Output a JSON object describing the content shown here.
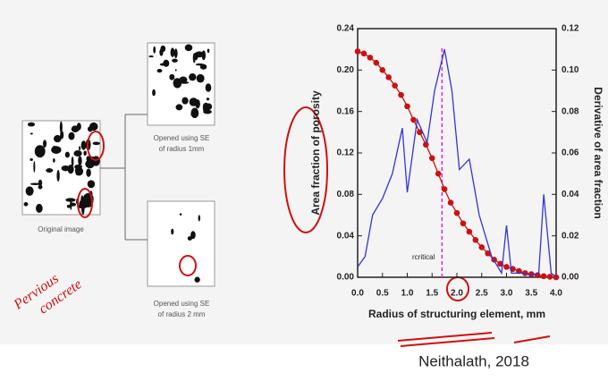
{
  "images": {
    "original": "Original image",
    "opened_1": [
      "Opened using SE",
      "of radius 1mm"
    ],
    "opened_2": [
      "Opened using SE",
      "of radius 2 mm"
    ]
  },
  "handwriting": [
    "Pervious",
    "concrete"
  ],
  "citation": "Neithalath, 2018",
  "chart_data": {
    "type": "line",
    "xlabel": "Radius of structuring element, mm",
    "ylabel": "Area fraction of porosity",
    "y2label": "Derivative of area fraction",
    "xlim": [
      0,
      4
    ],
    "ylim": [
      0,
      0.24
    ],
    "y2lim": [
      0,
      0.12
    ],
    "xticks": [
      {
        "value": 0,
        "label": "0.0"
      },
      0.5,
      {
        "value": 1,
        "label": "1.0"
      },
      1.5,
      {
        "value": 2,
        "label": "2.0"
      },
      2.5,
      {
        "value": 3,
        "label": "3.0"
      },
      3.5,
      {
        "value": 4,
        "label": "4.0"
      }
    ],
    "yticks": [
      {
        "value": 0,
        "label": "0.00"
      },
      {
        "value": 0.04,
        "label": "0.04"
      },
      {
        "value": 0.08,
        "label": "0.08"
      },
      {
        "value": 0.12,
        "label": "0.12"
      },
      {
        "value": 0.16,
        "label": "0.16"
      },
      {
        "value": 0.2,
        "label": "0.20"
      },
      {
        "value": 0.24,
        "label": "0.24"
      }
    ],
    "y2ticks": [
      {
        "value": 0,
        "label": "0.00"
      },
      {
        "value": 0.02,
        "label": "0.02"
      },
      {
        "value": 0.04,
        "label": "0.04"
      },
      {
        "value": 0.06,
        "label": "0.06"
      },
      {
        "value": 0.08,
        "label": "0.08"
      },
      {
        "value": 0.1,
        "label": "0.10"
      },
      {
        "value": 0.12,
        "label": "0.12"
      }
    ],
    "critical": {
      "x": 1.7,
      "label": "rcritical",
      "color": "#e020e0"
    },
    "series": [
      {
        "color": "#cc1111",
        "markers": true,
        "x": [
          0,
          0.125,
          0.25,
          0.375,
          0.5,
          0.625,
          0.75,
          0.875,
          1,
          1.125,
          1.25,
          1.375,
          1.5,
          1.625,
          1.75,
          1.875,
          2,
          2.125,
          2.25,
          2.375,
          2.5,
          2.625,
          2.75,
          2.875,
          3,
          3.125,
          3.25,
          3.375,
          3.5,
          3.625,
          3.75,
          3.875,
          4
        ],
        "values": [
          0.218,
          0.216,
          0.212,
          0.207,
          0.2,
          0.193,
          0.185,
          0.176,
          0.165,
          0.152,
          0.14,
          0.128,
          0.115,
          0.1,
          0.085,
          0.072,
          0.062,
          0.052,
          0.044,
          0.036,
          0.029,
          0.023,
          0.017,
          0.013,
          0.01,
          0.008,
          0.006,
          0.004,
          0.003,
          0.002,
          0.001,
          0.0005,
          0
        ]
      },
      {
        "color": "#3333dd",
        "markers": false,
        "axis": "y2",
        "x": [
          0,
          0.15,
          0.3,
          0.5,
          0.7,
          0.9,
          1.0,
          1.2,
          1.4,
          1.55,
          1.75,
          1.9,
          2.05,
          2.25,
          2.45,
          2.7,
          2.9,
          3.0,
          3.1,
          3.3,
          3.5,
          3.65,
          3.75,
          3.9,
          4.0
        ],
        "values": [
          0.005,
          0.01,
          0.03,
          0.038,
          0.05,
          0.072,
          0.041,
          0.076,
          0.065,
          0.09,
          0.11,
          0.09,
          0.052,
          0.057,
          0.03,
          0.01,
          0.002,
          0.025,
          0.002,
          0.002,
          0.001,
          0.002,
          0.04,
          0.002,
          0
        ]
      }
    ]
  }
}
